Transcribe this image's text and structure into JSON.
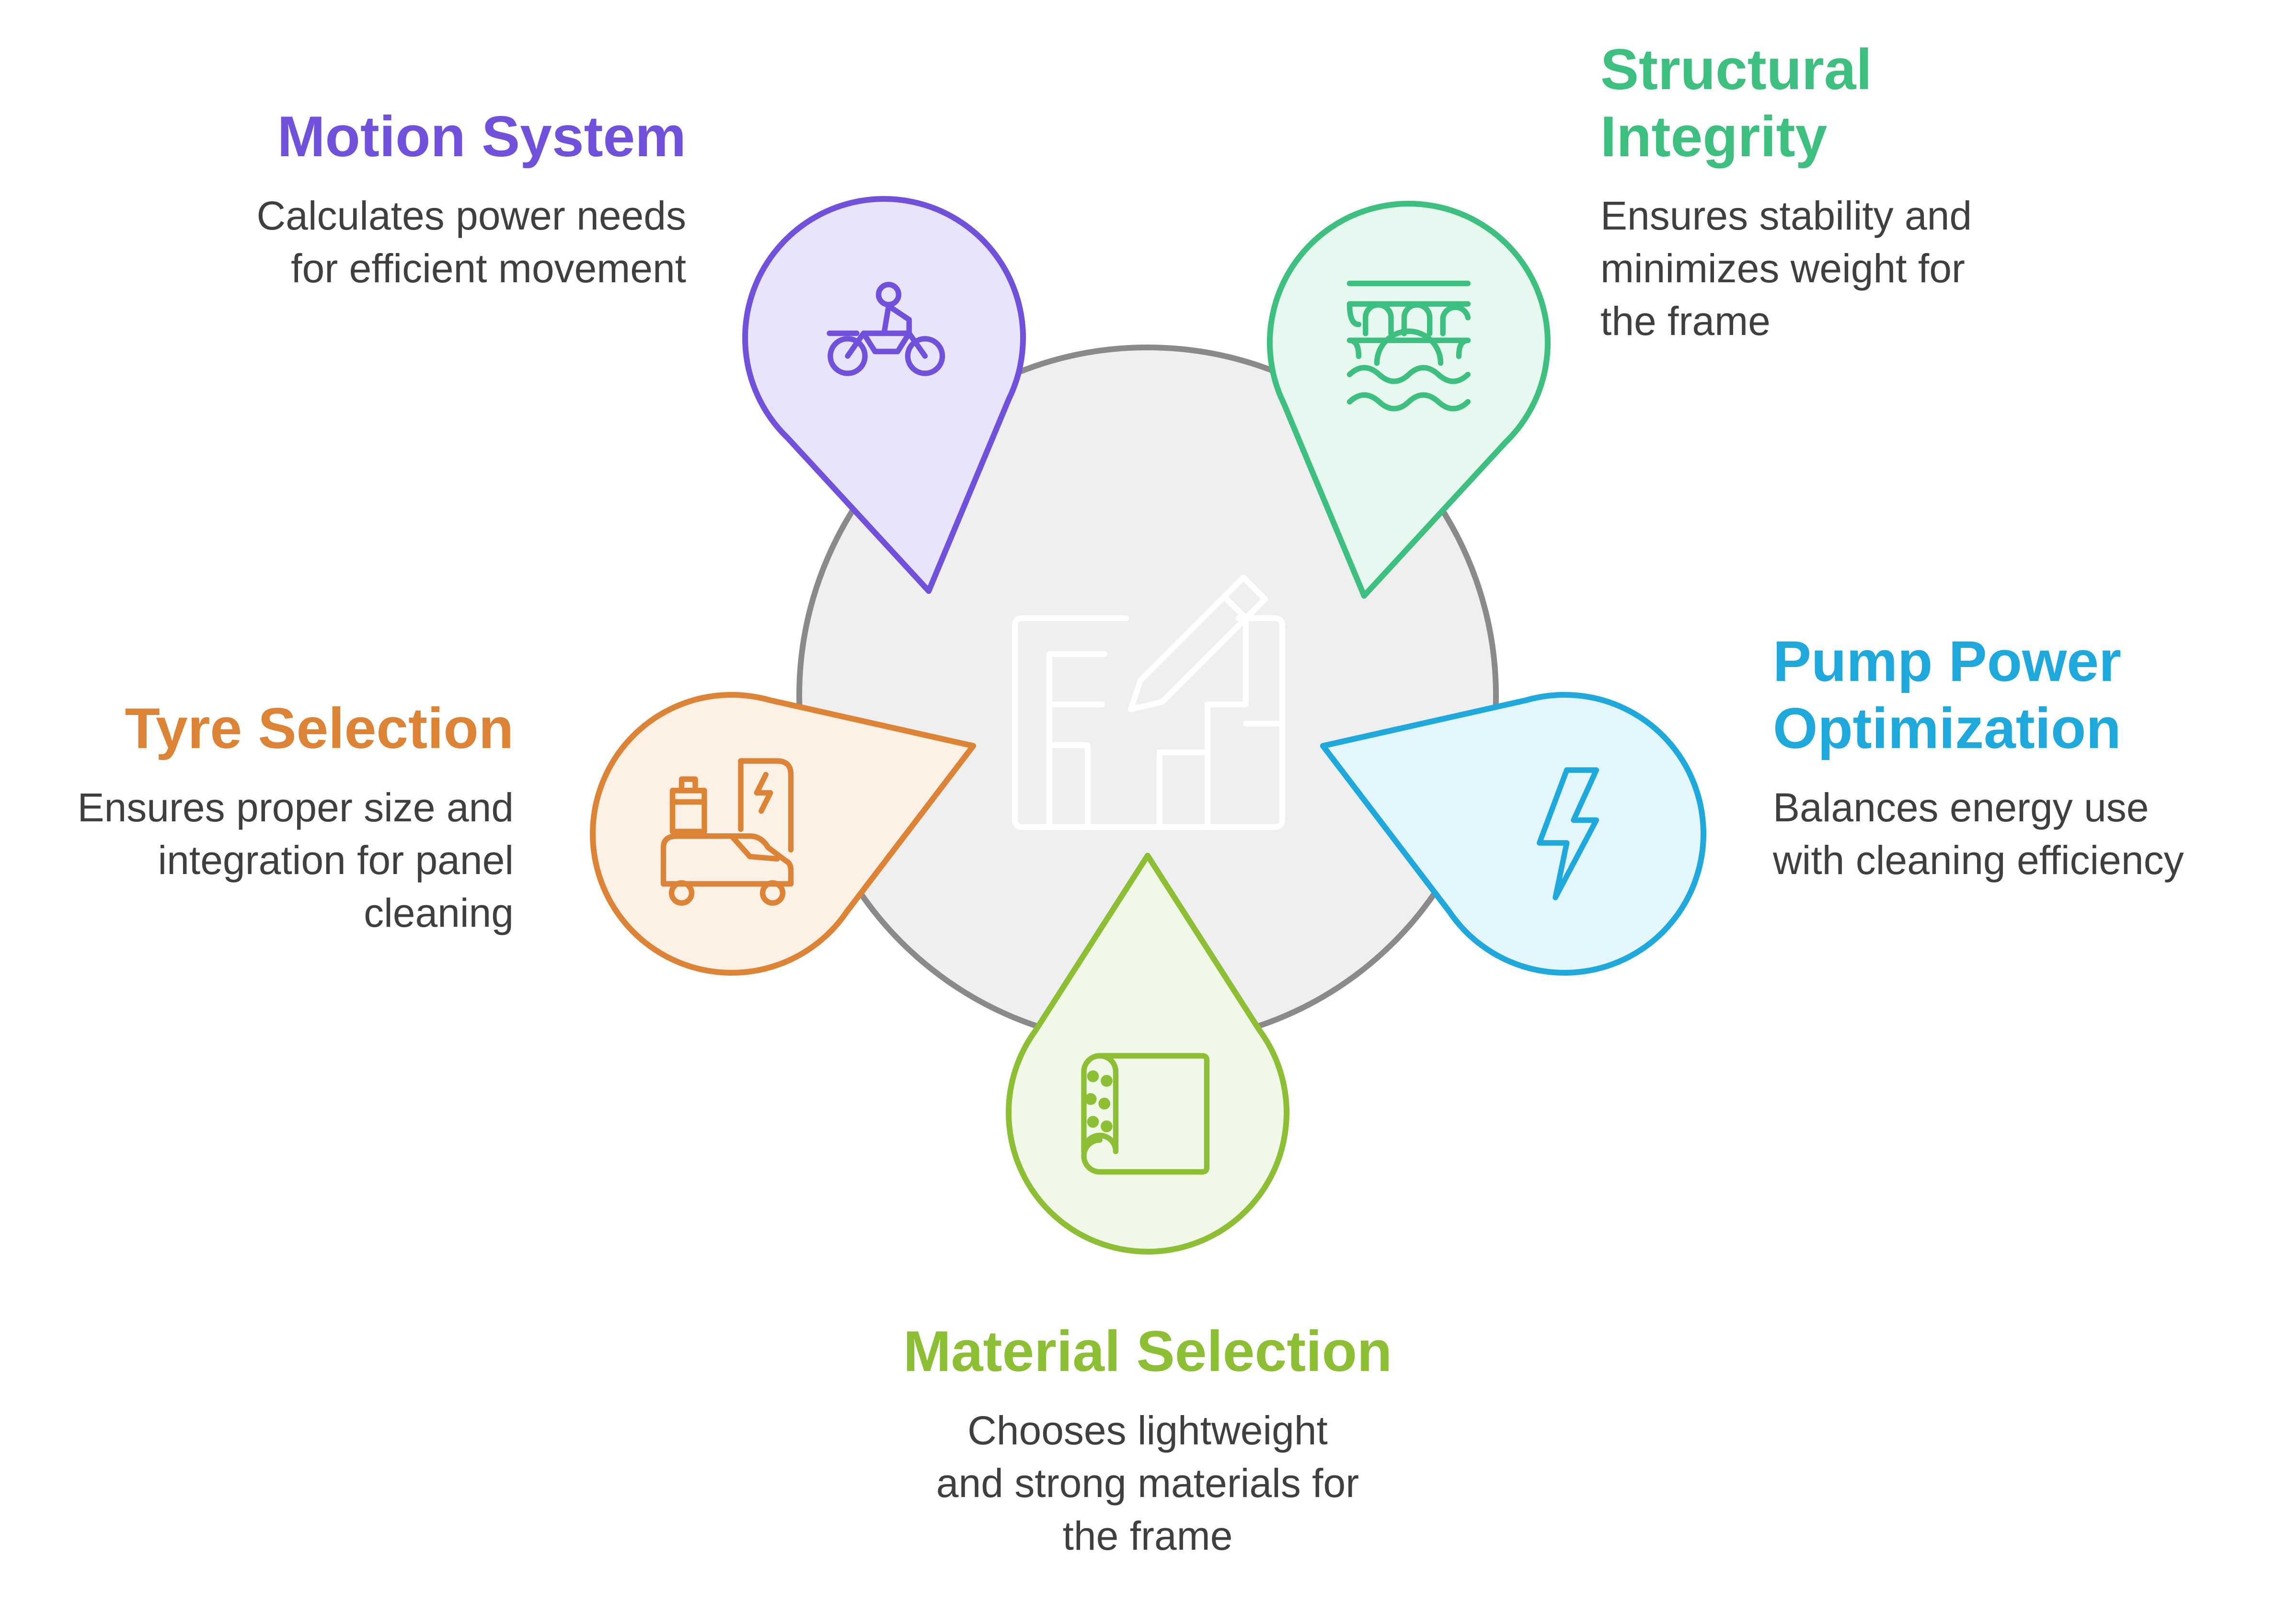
{
  "palette": {
    "center_fill": "#efefef",
    "center_stroke": "#8a8a8a",
    "center_icon": "#ffffff"
  },
  "items": [
    {
      "id": "motion",
      "title_lines": [
        "Motion System"
      ],
      "desc_lines": [
        "Calculates power needs",
        "for efficient movement"
      ],
      "icon": "motorcycle-icon",
      "color": "#7150dc",
      "fill": "#e8e5fb"
    },
    {
      "id": "structural",
      "title_lines": [
        "Structural",
        "Integrity"
      ],
      "desc_lines": [
        "Ensures stability and",
        "minimizes weight for",
        "the frame"
      ],
      "icon": "bridge-icon",
      "color": "#3dbf80",
      "fill": "#e6f8ef"
    },
    {
      "id": "pump",
      "title_lines": [
        "Pump Power",
        "Optimization"
      ],
      "desc_lines": [
        "Balances energy use",
        "with cleaning efficiency"
      ],
      "icon": "lightning-icon",
      "color": "#1ea8dc",
      "fill": "#e3f6fc"
    },
    {
      "id": "material",
      "title_lines": [
        "Material Selection"
      ],
      "desc_lines": [
        "Chooses lightweight",
        "and strong materials for",
        "the frame"
      ],
      "icon": "fabric-roll-icon",
      "color": "#8cbf33",
      "fill": "#f2f8e8"
    },
    {
      "id": "tyre",
      "title_lines": [
        "Tyre Selection"
      ],
      "desc_lines": [
        "Ensures proper size and",
        "integration for panel",
        "cleaning"
      ],
      "icon": "ev-charging-icon",
      "color": "#dd8336",
      "fill": "#fdf1e6"
    }
  ],
  "center": {
    "icon": "blueprint-pencil-icon"
  }
}
